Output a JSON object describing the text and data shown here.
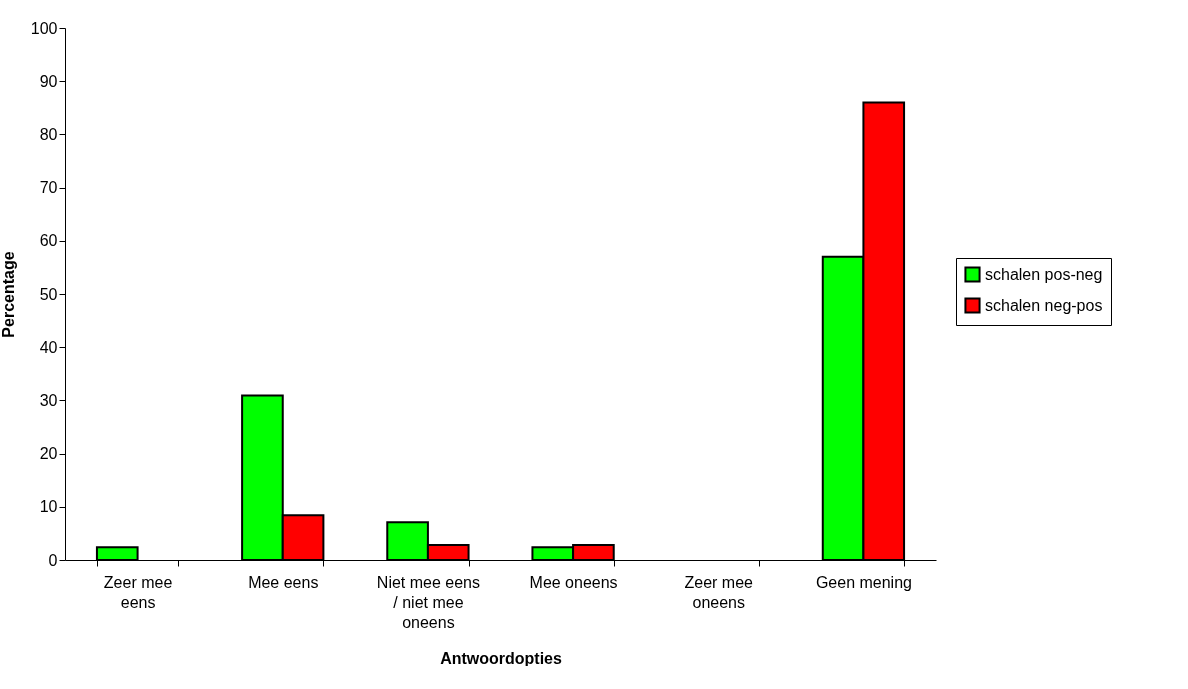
{
  "chart_data": {
    "type": "bar",
    "xlabel": "Antwoordopties",
    "ylabel": "Percentage",
    "categories": [
      "Zeer mee\neens",
      "Mee eens",
      "Niet mee eens\n/ niet mee\noneens",
      "Mee oneens",
      "Zeer mee\noneens",
      "Geen mening"
    ],
    "series": [
      {
        "name": "schalen pos-neg",
        "color": "#00ff00",
        "values": [
          2.4,
          30.9,
          7.1,
          2.4,
          0,
          57
        ]
      },
      {
        "name": "schalen neg-pos",
        "color": "#ff0000",
        "values": [
          0,
          8.4,
          2.8,
          2.8,
          0,
          86
        ]
      }
    ],
    "ylim": [
      0,
      100
    ],
    "yticks": [
      0,
      10,
      20,
      30,
      40,
      50,
      60,
      70,
      80,
      90,
      100
    ],
    "grid": false,
    "legend": "right"
  }
}
